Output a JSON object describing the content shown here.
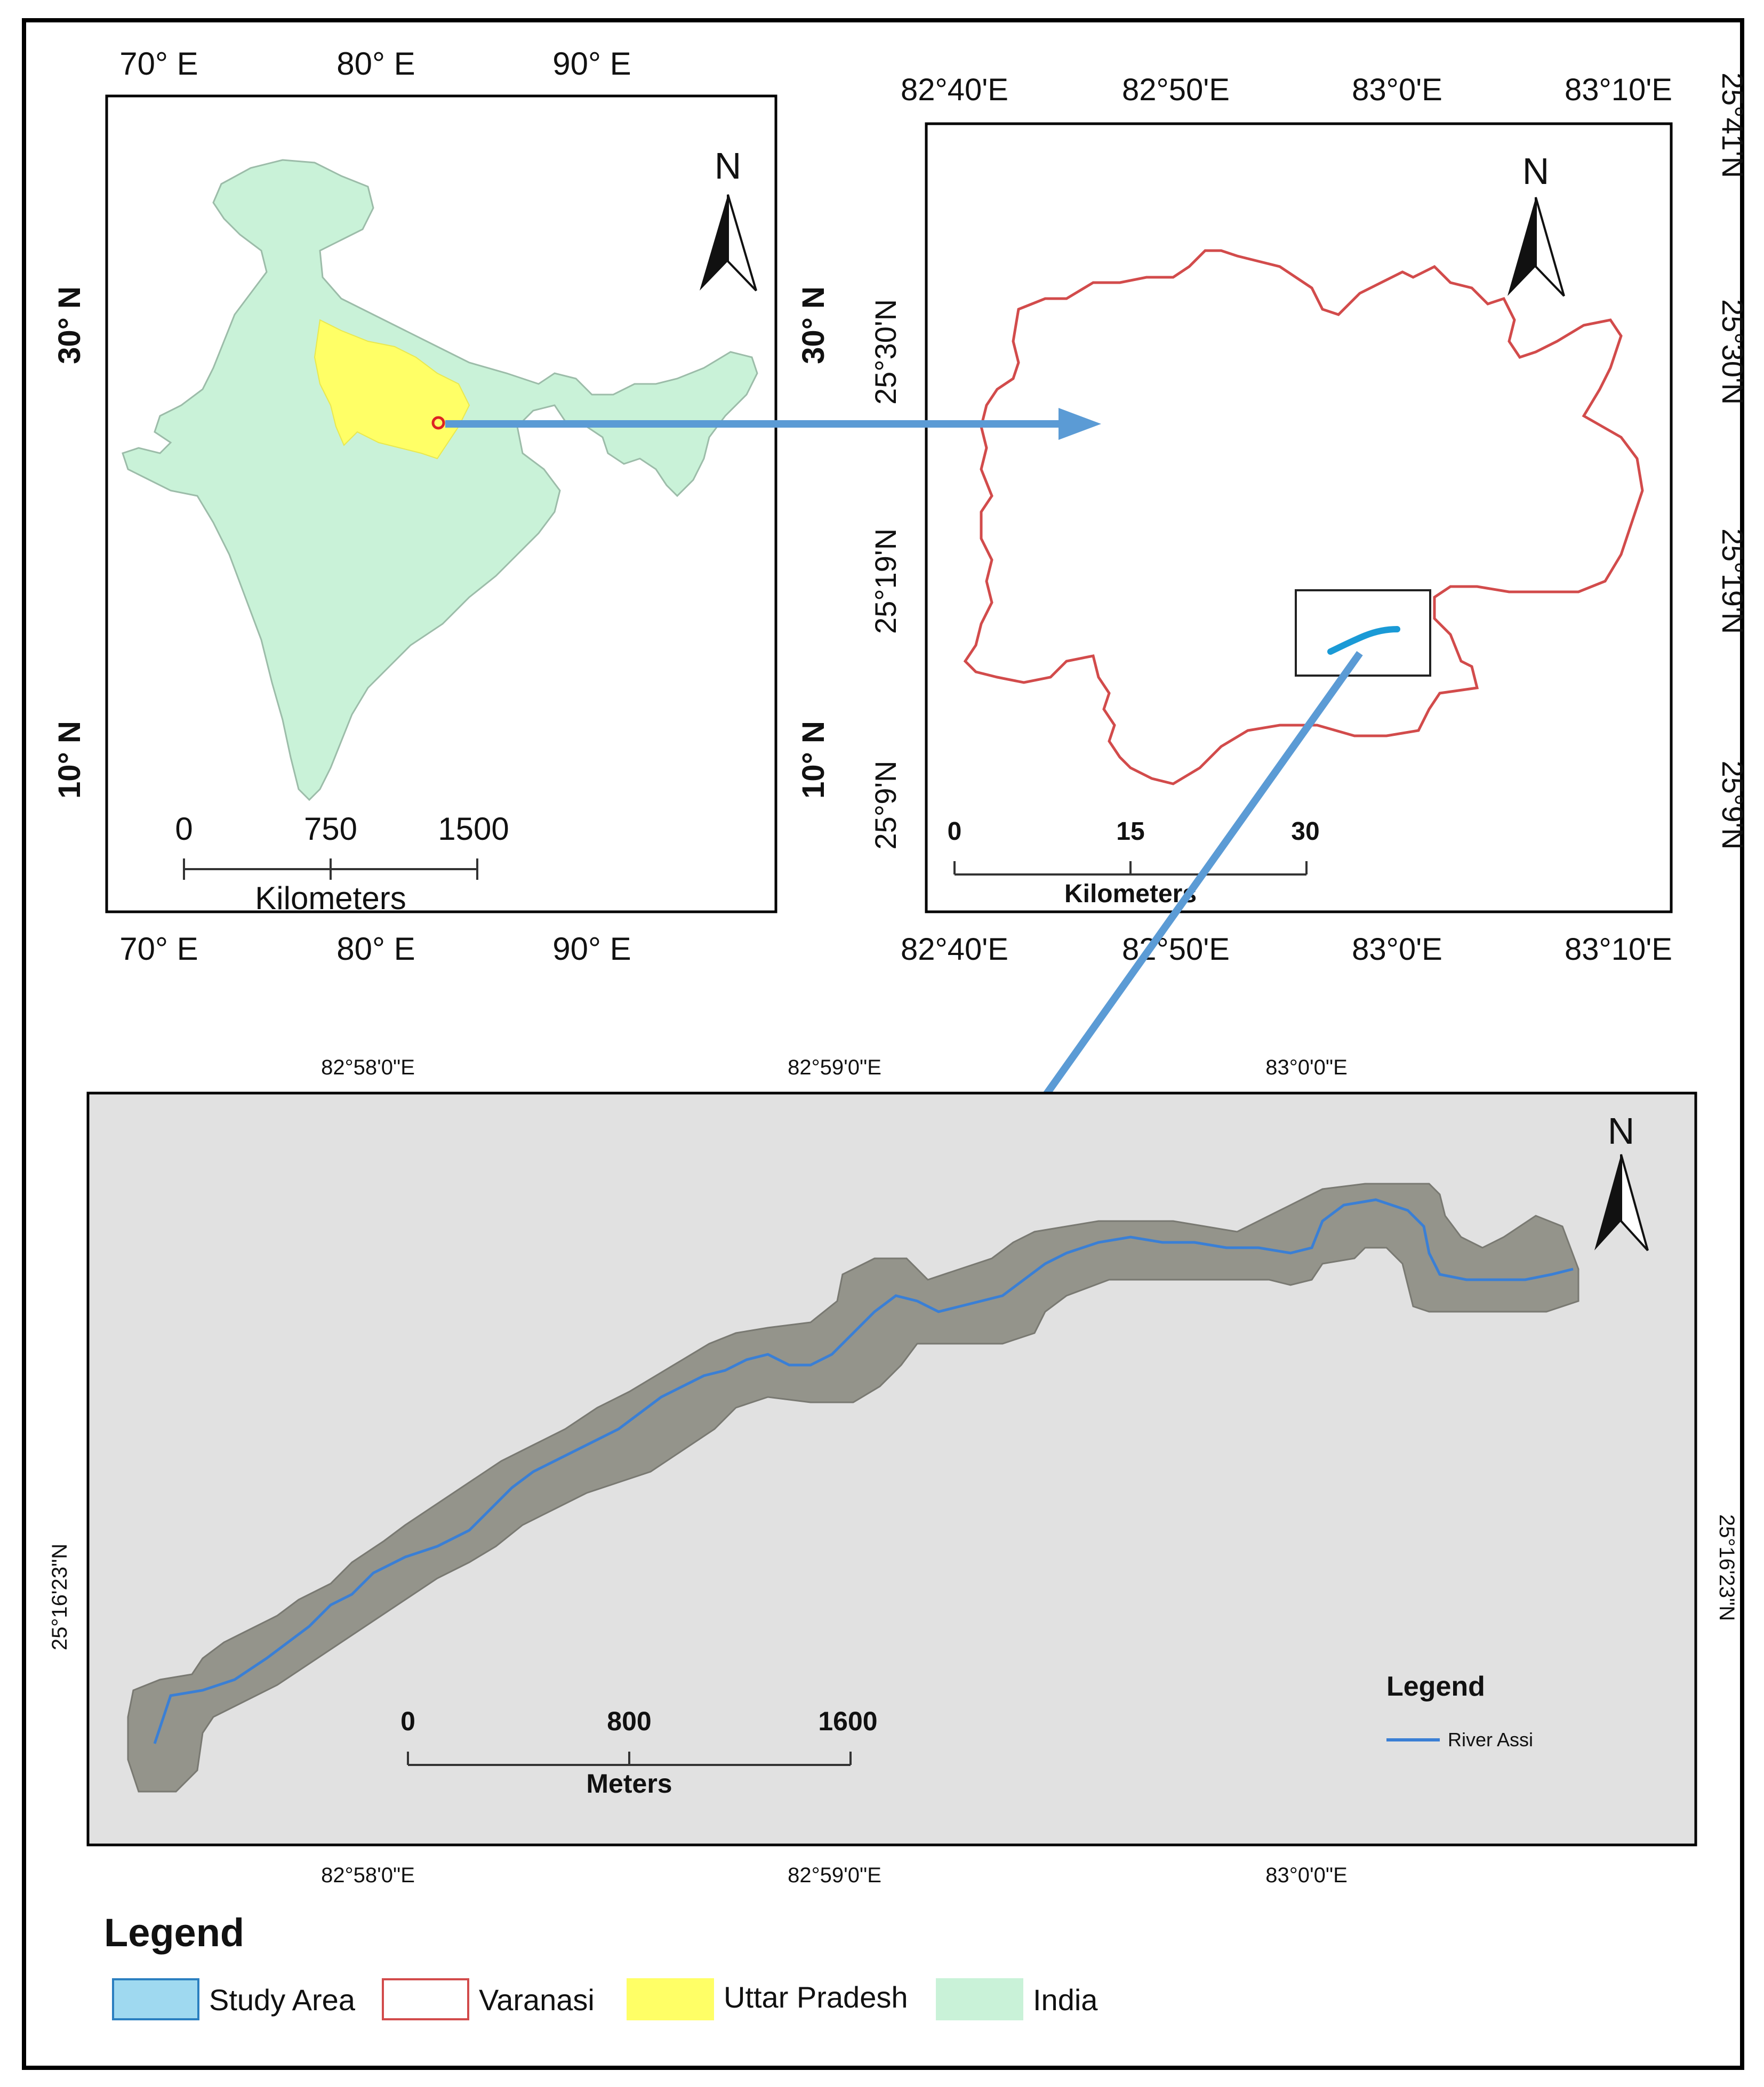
{
  "india_map": {
    "top_ticks": [
      "70° E",
      "80° E",
      "90° E"
    ],
    "bottom_ticks": [
      "70° E",
      "80° E",
      "90° E"
    ],
    "left_ticks": [
      "30° N",
      "10° N"
    ],
    "right_ticks": [
      "30° N",
      "10° N"
    ],
    "north_label": "N",
    "scale": {
      "ticks": [
        "0",
        "750",
        "1500"
      ],
      "unit": "Kilometers"
    }
  },
  "varanasi_map": {
    "top_ticks": [
      "82°40'E",
      "82°50'E",
      "83°0'E",
      "83°10'E"
    ],
    "bottom_ticks": [
      "82°40'E",
      "82°50'E",
      "83°0'E",
      "83°10'E"
    ],
    "left_ticks": [
      "25°30'N",
      "25°19'N",
      "25°9'N"
    ],
    "right_ticks": [
      "25°41'N",
      "25°30'N",
      "25°19'N",
      "25°9'N"
    ],
    "north_label": "N",
    "scale": {
      "ticks": [
        "0",
        "15",
        "30"
      ],
      "unit": "Kilometers"
    }
  },
  "study_map": {
    "top_ticks": [
      "82°58'0\"E",
      "82°59'0\"E",
      "83°0'0\"E"
    ],
    "bottom_ticks": [
      "82°58'0\"E",
      "82°59'0\"E",
      "83°0'0\"E"
    ],
    "left_tick": "25°16'23\"N",
    "right_tick": "25°16'23\"N",
    "north_label": "N",
    "scale": {
      "ticks": [
        "0",
        "800",
        "1600"
      ],
      "unit": "Meters"
    },
    "inner_legend": {
      "title": "Legend",
      "items": [
        {
          "label": "River Assi",
          "color": "#3a7fd5"
        }
      ]
    }
  },
  "legend": {
    "title": "Legend",
    "items": [
      {
        "label": "Study Area",
        "fill": "#9fd9f0",
        "stroke": "#2b7fc0"
      },
      {
        "label": "Varanasi",
        "fill": "#ffffff",
        "stroke": "#d24b4b"
      },
      {
        "label": "Uttar Pradesh",
        "fill": "#ffff66",
        "stroke": "#ffff66"
      },
      {
        "label": "India",
        "fill": "#c9f2d8",
        "stroke": "#c9f2d8"
      }
    ]
  },
  "colors": {
    "arrow": "#5b9bd5",
    "india": "#c9f2d8",
    "up": "#ffff66",
    "varanasi": "#d24b4b",
    "river": "#3a7fd5",
    "map_bg": "#e1e1e1"
  }
}
